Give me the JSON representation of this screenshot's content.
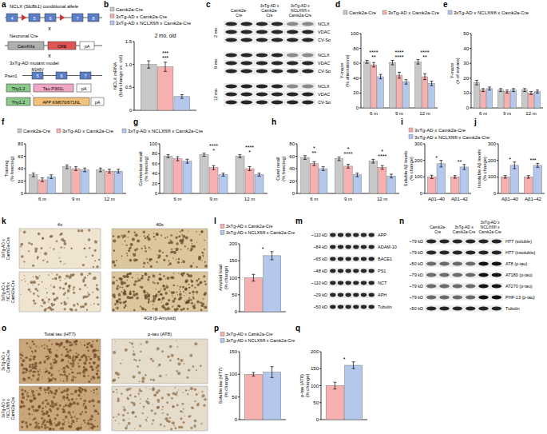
{
  "chart_data": [
    {
      "type": "bar",
      "title": "2 mo. old",
      "y_label": [
        "NCLX mRNA",
        "(fold change vs. ctrl)"
      ],
      "categories": [
        null
      ],
      "series": [
        {
          "name": "Camk2a-Cre",
          "color": "#c8c8c8",
          "values": [
            1.0
          ],
          "errors": [
            0.08
          ]
        },
        {
          "name": "3xTg-AD x Camk2a-Cre",
          "color": "#f6b0b0",
          "values": [
            0.95
          ],
          "errors": [
            0.1
          ]
        },
        {
          "name": "3xTg-AD x NCLXfl/fl x Camk2a-Cre",
          "color": "#b3c8ec",
          "values": [
            0.3
          ],
          "errors": [
            0.04
          ]
        }
      ],
      "ylim": [
        0,
        1.5
      ],
      "yticks": [
        0,
        {
          "value": 0.5,
          "label": "0.5"
        },
        {
          "value": 1,
          "label": "1.0"
        },
        {
          "value": 1.5,
          "label": "1.5"
        }
      ],
      "legend": "top",
      "annotations": [
        {
          "text": "***"
        },
        {
          "text": "***"
        }
      ]
    },
    {
      "type": "bar",
      "y_label": [
        "Y-maze",
        "(% alternations)"
      ],
      "categories": [
        "6 m",
        "9 m",
        "12 m"
      ],
      "series": [
        {
          "name": "Camk2a-Cre",
          "color": "#c8c8c8",
          "values": [
            62,
            61,
            62
          ],
          "errors": [
            2,
            3,
            3
          ]
        },
        {
          "name": "3xTg-AD x Camk2a-Cre",
          "color": "#f6b0b0",
          "values": [
            58,
            44,
            42
          ],
          "errors": [
            3,
            4,
            4
          ]
        },
        {
          "name": "3xTg-AD x NCLXfl/fl x Camk2a-Cre",
          "color": "#b3c8ec",
          "values": [
            42,
            35,
            33
          ],
          "errors": [
            3,
            3,
            3
          ]
        }
      ],
      "ylim": [
        0,
        100
      ],
      "yticks": [
        0,
        20,
        40,
        60,
        80,
        100
      ],
      "legend": "top",
      "annotations": [
        {
          "text": "**",
          "category": "6 m"
        },
        {
          "text": "****",
          "category": "6 m"
        },
        {
          "text": "****",
          "category": "9 m"
        },
        {
          "text": "****",
          "category": "9 m"
        },
        {
          "text": "**",
          "category": "12 m"
        },
        {
          "text": "****",
          "category": "12 m"
        }
      ]
    },
    {
      "type": "bar",
      "y_label": [
        "Y-maze",
        "(# of entries)"
      ],
      "categories": [
        "6 m",
        "9 m",
        "12 m"
      ],
      "series": [
        {
          "name": "Camk2a-Cre",
          "color": "#c8c8c8",
          "values": [
            17,
            12,
            12
          ],
          "errors": [
            1.5,
            1,
            1
          ]
        },
        {
          "name": "3xTg-AD x Camk2a-Cre",
          "color": "#f6b0b0",
          "values": [
            12,
            11,
            10
          ],
          "errors": [
            1,
            1,
            1
          ]
        },
        {
          "name": "3xTg-AD x NCLXfl/fl x Camk2a-Cre",
          "color": "#b3c8ec",
          "values": [
            13,
            12,
            11
          ],
          "errors": [
            1,
            1,
            1
          ]
        }
      ],
      "ylim": [
        0,
        50
      ],
      "yticks": [
        0,
        10,
        20,
        30,
        40,
        50
      ]
    },
    {
      "type": "bar",
      "y_label": [
        "Training",
        "(% freezing)"
      ],
      "categories": [
        "6 m",
        "9 m",
        "12 m"
      ],
      "series": [
        {
          "name": "Camk2a-Cre",
          "color": "#c8c8c8",
          "values": [
            30,
            43,
            38
          ],
          "errors": [
            3,
            3,
            3
          ]
        },
        {
          "name": "3xTg-AD x Camk2a-Cre",
          "color": "#f6b0b0",
          "values": [
            22,
            40,
            36
          ],
          "errors": [
            3,
            3,
            3
          ]
        },
        {
          "name": "3xTg-AD x NCLXfl/fl x Camk2a-Cre",
          "color": "#b3c8ec",
          "values": [
            27,
            38,
            36
          ],
          "errors": [
            3,
            3,
            3
          ]
        }
      ],
      "ylim": [
        0,
        80
      ],
      "yticks": [
        0,
        20,
        40,
        60,
        80
      ],
      "legend": "top"
    },
    {
      "type": "bar",
      "y_label": [
        "Contextual recall",
        "(% freezing)"
      ],
      "categories": [
        "6 m",
        "9 m",
        "12 m"
      ],
      "series": [
        {
          "name": "Camk2a-Cre",
          "color": "#c8c8c8",
          "values": [
            75,
            78,
            75
          ],
          "errors": [
            3,
            3,
            3
          ]
        },
        {
          "name": "3xTg-AD x Camk2a-Cre",
          "color": "#f6b0b0",
          "values": [
            70,
            52,
            50
          ],
          "errors": [
            4,
            4,
            4
          ]
        },
        {
          "name": "3xTg-AD x NCLXfl/fl x Camk2a-Cre",
          "color": "#b3c8ec",
          "values": [
            65,
            38,
            38
          ],
          "errors": [
            4,
            3,
            3
          ]
        }
      ],
      "ylim": [
        0,
        100
      ],
      "yticks": [
        0,
        20,
        40,
        60,
        80,
        100
      ],
      "annotations": [
        {
          "text": "*",
          "category": "9 m"
        },
        {
          "text": "****",
          "category": "9 m"
        },
        {
          "text": "*",
          "category": "12 m"
        },
        {
          "text": "****",
          "category": "12 m"
        }
      ]
    },
    {
      "type": "bar",
      "y_label": [
        "Cued recall",
        "(% freezing)"
      ],
      "categories": [
        "6 m",
        "9 m",
        "12 m"
      ],
      "series": [
        {
          "name": "Camk2a-Cre",
          "color": "#c8c8c8",
          "values": [
            58,
            56,
            52
          ],
          "errors": [
            3,
            3,
            3
          ]
        },
        {
          "name": "3xTg-AD x Camk2a-Cre",
          "color": "#f6b0b0",
          "values": [
            48,
            44,
            42
          ],
          "errors": [
            3,
            3,
            3
          ]
        },
        {
          "name": "3xTg-AD x NCLXfl/fl x Camk2a-Cre",
          "color": "#b3c8ec",
          "values": [
            40,
            30,
            28
          ],
          "errors": [
            3,
            3,
            3
          ]
        }
      ],
      "ylim": [
        0,
        80
      ],
      "yticks": [
        0,
        20,
        40,
        60,
        80
      ],
      "annotations": [
        {
          "text": "**",
          "category": "6 m"
        },
        {
          "text": "*",
          "category": "6 m"
        },
        {
          "text": "****",
          "category": "9 m"
        },
        {
          "text": "*",
          "category": "9 m"
        },
        {
          "text": "****",
          "category": "12 m"
        },
        {
          "text": "*",
          "category": "12 m"
        }
      ]
    },
    {
      "type": "bar",
      "y_label": [
        "Soluble Aβ levels",
        "(% change)"
      ],
      "categories": [
        "Aβ1–40",
        "Aβ1–42"
      ],
      "series": [
        {
          "name": "3xTg-AD x Camk2a-Cre",
          "color": "#f6b0b0",
          "values": [
            100,
            100
          ],
          "errors": [
            10,
            8
          ]
        },
        {
          "name": "3xTg-AD x NCLXfl/fl x Camk2a-Cre",
          "color": "#b3c8ec",
          "values": [
            180,
            160
          ],
          "errors": [
            20,
            15
          ]
        }
      ],
      "ylim": [
        0,
        300
      ],
      "yticks": [
        0,
        100,
        200,
        300
      ],
      "legend": "top",
      "annotations": [
        {
          "text": "*",
          "category": "Aβ1–40"
        },
        {
          "text": "**",
          "category": "Aβ1–42"
        }
      ]
    },
    {
      "type": "bar",
      "y_label": [
        "Insoluble Aβ levels",
        "(% change)"
      ],
      "categories": [
        "Aβ1–40",
        "Aβ1–42"
      ],
      "series": [
        {
          "name": "3xTg-AD x Camk2a-Cre",
          "color": "#f6b0b0",
          "values": [
            100,
            100
          ],
          "errors": [
            8,
            8
          ]
        },
        {
          "name": "3xTg-AD x NCLXfl/fl x Camk2a-Cre",
          "color": "#b3c8ec",
          "values": [
            170,
            170
          ],
          "errors": [
            20,
            12
          ]
        }
      ],
      "ylim": [
        0,
        300
      ],
      "yticks": [
        0,
        100,
        200,
        300
      ],
      "annotations": [
        {
          "text": "*",
          "category": "Aβ1–40"
        },
        {
          "text": "***",
          "category": "Aβ1–42"
        }
      ]
    },
    {
      "type": "bar",
      "y_label": [
        "Amyloid load",
        "(% change)"
      ],
      "categories": [
        null
      ],
      "series": [
        {
          "name": "3xTg-AD x Camk2a-Cre",
          "color": "#f6b0b0",
          "values": [
            100
          ],
          "errors": [
            10
          ]
        },
        {
          "name": "3xTg-AD x NCLXfl/fl x Camk2a-Cre",
          "color": "#b3c8ec",
          "values": [
            165
          ],
          "errors": [
            12
          ]
        }
      ],
      "ylim": [
        0,
        200
      ],
      "yticks": [
        0,
        50,
        100,
        150,
        200
      ],
      "legend": "top",
      "annotations": [
        {
          "text": "*"
        }
      ]
    },
    {
      "type": "bar",
      "y_label": [
        "Soluble tau (HT7)",
        "(% change)"
      ],
      "categories": [
        null
      ],
      "series": [
        {
          "name": "3xTg-AD x Camk2a-Cre",
          "color": "#f6b0b0",
          "values": [
            100
          ],
          "errors": [
            4
          ]
        },
        {
          "name": "3xTg-AD x NCLXfl/fl x Camk2a-Cre",
          "color": "#b3c8ec",
          "values": [
            105
          ],
          "errors": [
            12
          ]
        }
      ],
      "ylim": [
        0,
        150
      ],
      "yticks": [
        0,
        50,
        100,
        150
      ],
      "legend": "top"
    },
    {
      "type": "bar",
      "y_label": [
        "p-tau (AT8)",
        "(% change)"
      ],
      "categories": [
        null
      ],
      "series": [
        {
          "name": "3xTg-AD x Camk2a-Cre",
          "color": "#f6b0b0",
          "values": [
            100
          ],
          "errors": [
            10
          ]
        },
        {
          "name": "3xTg-AD x NCLXfl/fl x Camk2a-Cre",
          "color": "#b3c8ec",
          "values": [
            160
          ],
          "errors": [
            10
          ]
        }
      ],
      "ylim": [
        0,
        200
      ],
      "yticks": [
        0,
        50,
        100,
        150,
        200
      ],
      "annotations": [
        {
          "text": "*"
        }
      ]
    }
  ],
  "figure": {
    "panel_letters": [
      "a",
      "b",
      "c",
      "d",
      "e",
      "f",
      "g",
      "h",
      "i",
      "j",
      "k",
      "l",
      "m",
      "n",
      "o",
      "p",
      "q"
    ],
    "a": {
      "allele_title": "NCLX (Slc8b1) conditional allele",
      "allele_exons": [
        "4",
        "5",
        "6",
        "7",
        "8"
      ],
      "cross": "x",
      "cre_title": "Neuronal Cre",
      "cre_parts": [
        "CamKIIa",
        "CRE",
        "pA"
      ],
      "model_title": "3xTg-AD mutant model",
      "psen_gene": "Psen1",
      "psen_mutation": "M146V",
      "psen_exons": [
        "5",
        "6",
        "7"
      ],
      "tau_parts": [
        "Thy1.2",
        "Tau P301L",
        "pA"
      ],
      "app_parts": [
        "Thy1.2",
        "APP KM670/671NL",
        "pA"
      ]
    },
    "c": {
      "headers": [
        [
          "Camk2a-",
          "Cre"
        ],
        [
          "3xTg-AD x",
          "Camk2a-",
          "Cre"
        ],
        [
          "3xTg-AD x",
          "NCLXfl/fl x",
          "Camk2a-Cre"
        ]
      ],
      "timepoints": [
        "2 mo.",
        "9 mo.",
        "12 mo."
      ],
      "rows": [
        "NCLX",
        "VDAC",
        "CV-Sα"
      ]
    },
    "k": {
      "columns": [
        "4x",
        "40x"
      ],
      "stain": "4G8 (β-Amyloid)",
      "rows": [
        [
          "3xTg-AD x",
          "Camk2a-Cre"
        ],
        [
          "3xTg-AD x",
          "NCLXfl/fl x",
          "Camk2a-Cre"
        ]
      ]
    },
    "m": {
      "mw": [
        "~110 kD",
        "~84 kD",
        "~65 kD",
        "~48 kD",
        "~110 kD",
        "~29 kD",
        "~50 kD"
      ],
      "proteins": [
        "APP",
        "ADAM-10",
        "BACE1",
        "PS1",
        "NCT",
        "APH",
        "Tubulin"
      ]
    },
    "n": {
      "headers": [
        [
          "Camk2a-",
          "Cre"
        ],
        [
          "3xTg-AD x",
          "Camk2a-Cre"
        ],
        [
          "3xTg-AD x",
          "NCLXfl/fl x",
          "Camk2a-Cre"
        ]
      ],
      "mw": [
        "~79 kD",
        "~79 kD",
        "~50 kD",
        "~79 kD",
        "~79 kD",
        "~79 kD",
        "~50 kD"
      ],
      "proteins": [
        "HT7 (soluble)",
        "HT7 (insoluble)",
        "AT8 (p-tau)",
        "AT180 (p-tau)",
        "AT270 (p-tau)",
        "PHF-13 (p-tau)",
        "Tubulin"
      ]
    },
    "o": {
      "columns": [
        "Total tau (HT7)",
        "p-tau (AT8)"
      ],
      "rows": [
        [
          "3xTg-AD x",
          "Camk2a-Cre"
        ],
        [
          "3xTg-AD x",
          "NCLXfl/fl x",
          "Camk2a-Cre"
        ]
      ]
    }
  }
}
